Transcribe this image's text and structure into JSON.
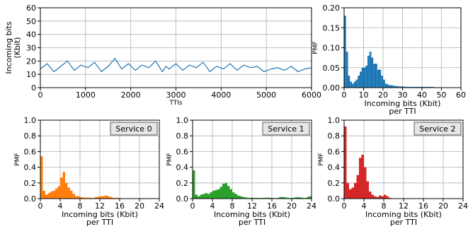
{
  "chart_data": [
    {
      "type": "line",
      "xlabel": "TTIs",
      "ylabel": "Incoming bits (Kbit)",
      "xlim": [
        0,
        6000
      ],
      "ylim": [
        0,
        60
      ],
      "x_ticks": [
        0,
        1000,
        2000,
        3000,
        4000,
        5000,
        6000
      ],
      "y_ticks": [
        0,
        10,
        20,
        30,
        40,
        50,
        60
      ],
      "grid": true,
      "color": "#1f77b4",
      "series": [
        {
          "x": [
            0,
            150,
            300,
            450,
            600,
            750,
            900,
            1050,
            1200,
            1350,
            1500,
            1650,
            1800,
            1950,
            2100,
            2250,
            2400,
            2550,
            2700,
            2780,
            2850,
            3000,
            3150,
            3300,
            3450,
            3600,
            3750,
            3900,
            4050,
            4200,
            4350,
            4500,
            4650,
            4800,
            4950,
            5100,
            5250,
            5400,
            5550,
            5700,
            5850,
            6000
          ],
          "values": [
            14,
            18,
            12,
            16,
            20,
            13,
            17,
            15,
            19,
            12,
            16,
            22,
            14,
            18,
            13,
            17,
            15,
            20,
            12,
            16,
            14,
            18,
            13,
            17,
            15,
            19,
            12,
            16,
            14,
            18,
            13,
            17,
            15,
            16,
            12,
            14,
            15,
            13,
            16,
            12,
            14,
            15
          ]
        }
      ]
    },
    {
      "type": "bar",
      "xlabel": "Incoming bits (Kbit)\nper TTI",
      "ylabel": "PMF",
      "xlim": [
        0,
        60
      ],
      "ylim": [
        0,
        0.2
      ],
      "x_ticks": [
        0,
        10,
        20,
        30,
        40,
        50,
        60
      ],
      "y_ticks": [
        0.0,
        0.05,
        0.1,
        0.15,
        0.2
      ],
      "grid": true,
      "color": "#1f77b4",
      "bin_width": 1,
      "x": [
        0,
        1,
        2,
        3,
        4,
        5,
        6,
        7,
        8,
        9,
        10,
        11,
        12,
        13,
        14,
        15,
        16,
        17,
        18,
        19,
        20,
        21,
        22,
        23,
        24,
        25,
        26,
        27,
        28,
        29,
        30,
        31,
        32,
        33,
        34,
        35,
        36,
        37,
        38,
        39,
        40,
        41,
        42,
        43,
        44,
        45,
        46,
        47,
        48,
        49
      ],
      "values": [
        0.18,
        0.09,
        0.03,
        0.015,
        0.01,
        0.015,
        0.02,
        0.03,
        0.04,
        0.05,
        0.05,
        0.055,
        0.08,
        0.09,
        0.075,
        0.06,
        0.06,
        0.045,
        0.045,
        0.03,
        0.02,
        0.01,
        0.008,
        0.006,
        0.006,
        0.005,
        0.004,
        0.004,
        0.003,
        0.003,
        0.003,
        0.002,
        0.002,
        0.002,
        0.002,
        0.002,
        0.002,
        0.002,
        0.002,
        0.002,
        0.002,
        0.002,
        0.002,
        0.002,
        0.002,
        0.002,
        0.001,
        0.001,
        0.001,
        0.001
      ]
    },
    {
      "type": "bar",
      "legend": "Service 0",
      "xlabel": "Incoming bits (Kbit)\nper TTI",
      "ylabel": "PMF",
      "xlim": [
        0,
        24
      ],
      "ylim": [
        0,
        1.0
      ],
      "x_ticks": [
        0,
        4,
        8,
        12,
        16,
        20,
        24
      ],
      "y_ticks": [
        0.0,
        0.2,
        0.4,
        0.6,
        0.8,
        1.0
      ],
      "grid": true,
      "color": "#ff7f0e",
      "bin_width": 0.5,
      "x": [
        0,
        0.5,
        1,
        1.5,
        2,
        2.5,
        3,
        3.5,
        4,
        4.5,
        5,
        5.5,
        6,
        6.5,
        7,
        7.5,
        8,
        8.5,
        9,
        9.5,
        10,
        10.5,
        11,
        11.5,
        12,
        12.5,
        13,
        13.5,
        14,
        14.5,
        15,
        15.5,
        16,
        16.5,
        17
      ],
      "values": [
        0.54,
        0.1,
        0.05,
        0.07,
        0.09,
        0.1,
        0.13,
        0.16,
        0.27,
        0.34,
        0.2,
        0.14,
        0.1,
        0.06,
        0.03,
        0.03,
        0.02,
        0.015,
        0.01,
        0.012,
        0.01,
        0.008,
        0.02,
        0.025,
        0.03,
        0.03,
        0.04,
        0.03,
        0.02,
        0.01,
        0.01,
        0.01,
        0.005,
        0.003,
        0.002
      ]
    },
    {
      "type": "bar",
      "legend": "Service 1",
      "xlabel": "Incoming bits (Kbit)\nper TTI",
      "ylabel": "PMF",
      "xlim": [
        0,
        24
      ],
      "ylim": [
        0,
        1.0
      ],
      "x_ticks": [
        0,
        4,
        8,
        12,
        16,
        20,
        24
      ],
      "y_ticks": [
        0.0,
        0.2,
        0.4,
        0.6,
        0.8,
        1.0
      ],
      "grid": true,
      "color": "#2ca02c",
      "bin_width": 0.5,
      "x": [
        0,
        0.5,
        1,
        1.5,
        2,
        2.5,
        3,
        3.5,
        4,
        4.5,
        5,
        5.5,
        6,
        6.5,
        7,
        7.5,
        8,
        8.5,
        9,
        9.5,
        10,
        10.5,
        11,
        11.5,
        12,
        12.5,
        13,
        13.5,
        14,
        14.5,
        15,
        15.5,
        16,
        16.5,
        17,
        17.5,
        18,
        18.5,
        19,
        19.5,
        20,
        20.5,
        21,
        21.5,
        22,
        22.5,
        23,
        23.5
      ],
      "values": [
        0.36,
        0.05,
        0.03,
        0.05,
        0.06,
        0.07,
        0.06,
        0.08,
        0.1,
        0.11,
        0.12,
        0.15,
        0.19,
        0.2,
        0.16,
        0.12,
        0.08,
        0.06,
        0.04,
        0.03,
        0.02,
        0.015,
        0.01,
        0.012,
        0.01,
        0.01,
        0.01,
        0.008,
        0.01,
        0.01,
        0.012,
        0.01,
        0.008,
        0.006,
        0.01,
        0.02,
        0.02,
        0.015,
        0.01,
        0.008,
        0.01,
        0.015,
        0.02,
        0.015,
        0.01,
        0.008,
        0.02,
        0.03
      ]
    },
    {
      "type": "bar",
      "legend": "Service 2",
      "xlabel": "Incoming bits (Kbit)\nper TTI",
      "ylabel": "PMF",
      "xlim": [
        0,
        24
      ],
      "ylim": [
        0,
        1.0
      ],
      "x_ticks": [
        0,
        4,
        8,
        12,
        16,
        20,
        24
      ],
      "y_ticks": [
        0.0,
        0.2,
        0.4,
        0.6,
        0.8,
        1.0
      ],
      "grid": true,
      "color": "#d62728",
      "bin_width": 0.5,
      "x": [
        0,
        0.5,
        1,
        1.5,
        2,
        2.5,
        3,
        3.5,
        4,
        4.5,
        5,
        5.5,
        6,
        6.5,
        7,
        7.5,
        8,
        8.5,
        9,
        9.5
      ],
      "values": [
        0.92,
        0.2,
        0.12,
        0.14,
        0.2,
        0.3,
        0.52,
        0.56,
        0.4,
        0.22,
        0.09,
        0.05,
        0.03,
        0.02,
        0.04,
        0.03,
        0.05,
        0.03,
        0.01,
        0.005
      ]
    }
  ]
}
